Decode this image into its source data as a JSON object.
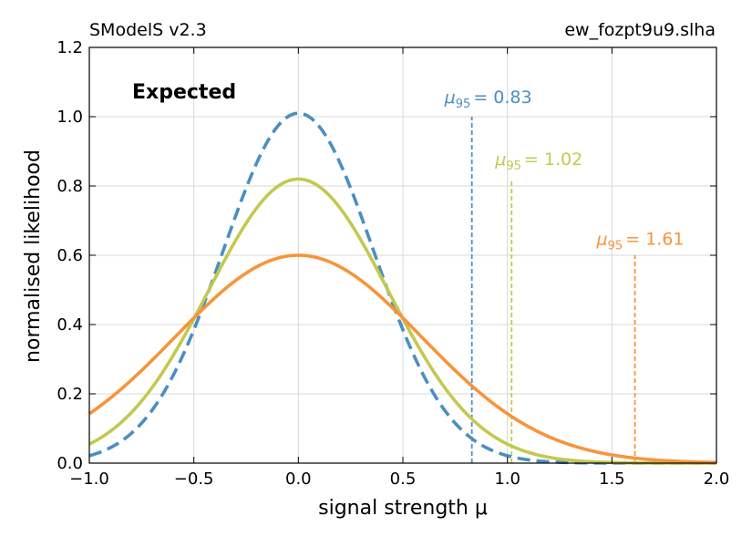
{
  "chart_data": {
    "type": "line",
    "header_left": "SModelS v2.3",
    "header_right": "ew_fozpt9u9.slha",
    "label": "Expected",
    "xlabel": "signal strength μ",
    "ylabel": "normalised likelihood",
    "xlim": [
      -1.0,
      2.0
    ],
    "ylim": [
      0.0,
      1.2
    ],
    "xticks": [
      -1.0,
      -0.5,
      0.0,
      0.5,
      1.0,
      1.5,
      2.0
    ],
    "xtick_labels": [
      "−1.0",
      "−0.5",
      "0.0",
      "0.5",
      "1.0",
      "1.5",
      "2.0"
    ],
    "yticks": [
      0.0,
      0.2,
      0.4,
      0.6,
      0.8,
      1.0,
      1.2
    ],
    "ytick_labels": [
      "0.0",
      "0.2",
      "0.4",
      "0.6",
      "0.8",
      "1.0",
      "1.2"
    ],
    "grid": true,
    "series": [
      {
        "name": "blue dashed curve",
        "color": "#4a8fc1",
        "style": "dashed",
        "peak_x": 0.0,
        "peak_y": 1.01,
        "sigma": 0.36,
        "mu95": 0.83,
        "mu95_label_sub": "95",
        "mu95_label_value": "= 0.83",
        "x": [
          -1.0,
          -0.75,
          -0.5,
          -0.25,
          0.0,
          0.25,
          0.5,
          0.75,
          1.0,
          1.25,
          1.5,
          1.75,
          2.0
        ],
        "y": [
          0.02,
          0.12,
          0.38,
          0.79,
          1.01,
          0.79,
          0.38,
          0.12,
          0.02,
          0.002,
          0.0,
          0.0,
          0.0
        ]
      },
      {
        "name": "olive curve",
        "color": "#c4c850",
        "style": "solid",
        "peak_x": 0.0,
        "peak_y": 0.82,
        "sigma": 0.43,
        "mu95": 1.02,
        "mu95_label_sub": "95",
        "mu95_label_value": "= 1.02",
        "x": [
          -1.0,
          -0.75,
          -0.5,
          -0.25,
          0.0,
          0.25,
          0.5,
          0.75,
          1.0,
          1.25,
          1.5,
          1.75,
          2.0
        ],
        "y": [
          0.08,
          0.18,
          0.41,
          0.69,
          0.82,
          0.69,
          0.41,
          0.18,
          0.06,
          0.01,
          0.002,
          0.0,
          0.0
        ]
      },
      {
        "name": "orange curve",
        "color": "#f7943a",
        "style": "solid",
        "peak_x": 0.0,
        "peak_y": 0.6,
        "sigma": 0.59,
        "mu95": 1.61,
        "mu95_label_sub": "95",
        "mu95_label_value": "= 1.61",
        "x": [
          -1.0,
          -0.75,
          -0.5,
          -0.25,
          0.0,
          0.25,
          0.5,
          0.75,
          1.0,
          1.25,
          1.5,
          1.75,
          2.0
        ],
        "y": [
          0.12,
          0.27,
          0.42,
          0.55,
          0.6,
          0.55,
          0.42,
          0.27,
          0.14,
          0.07,
          0.023,
          0.008,
          0.003
        ]
      }
    ]
  }
}
